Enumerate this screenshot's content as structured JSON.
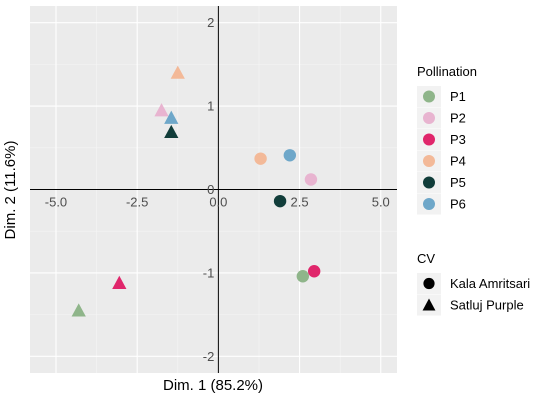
{
  "chart_data": {
    "type": "scatter",
    "xlabel": "Dim. 1 (85.2%)",
    "ylabel": "Dim. 2 (11.6%)",
    "xlim": [
      -5.8,
      5.5
    ],
    "ylim": [
      -2.2,
      2.2
    ],
    "x_ticks": [
      -5.0,
      -2.5,
      0.0,
      2.5,
      5.0
    ],
    "x_tick_labels": [
      "-5.0",
      "-2.5",
      "0.0",
      "2.5",
      "5.0"
    ],
    "y_ticks": [
      -2,
      -1,
      0,
      1,
      2
    ],
    "y_tick_labels": [
      "-2",
      "-1",
      "0",
      "1",
      "2"
    ],
    "grid": true,
    "reference_lines": {
      "x": 0,
      "y": 0
    },
    "legend_placement": "right",
    "legends": {
      "color": {
        "title": "Pollination",
        "items": [
          {
            "label": "P1",
            "color": "#8fb58a"
          },
          {
            "label": "P2",
            "color": "#e8b4d0"
          },
          {
            "label": "P3",
            "color": "#e0266b"
          },
          {
            "label": "P4",
            "color": "#f3b998"
          },
          {
            "label": "P5",
            "color": "#113d3a"
          },
          {
            "label": "P6",
            "color": "#6ea7c9"
          }
        ]
      },
      "shape": {
        "title": "CV",
        "items": [
          {
            "label": "Kala Amritsari",
            "shape": "circle"
          },
          {
            "label": "Satluj Purple",
            "shape": "triangle"
          }
        ]
      }
    },
    "points": [
      {
        "x": -4.3,
        "y": -1.45,
        "pollination": "P1",
        "cv": "Satluj Purple"
      },
      {
        "x": 2.6,
        "y": -1.04,
        "pollination": "P1",
        "cv": "Kala Amritsari"
      },
      {
        "x": -1.75,
        "y": 0.95,
        "pollination": "P2",
        "cv": "Satluj Purple"
      },
      {
        "x": 2.85,
        "y": 0.12,
        "pollination": "P2",
        "cv": "Kala Amritsari"
      },
      {
        "x": -3.05,
        "y": -1.12,
        "pollination": "P3",
        "cv": "Satluj Purple"
      },
      {
        "x": 2.95,
        "y": -0.98,
        "pollination": "P3",
        "cv": "Kala Amritsari"
      },
      {
        "x": -1.25,
        "y": 1.4,
        "pollination": "P4",
        "cv": "Satluj Purple"
      },
      {
        "x": 1.3,
        "y": 0.37,
        "pollination": "P4",
        "cv": "Kala Amritsari"
      },
      {
        "x": -1.45,
        "y": 0.69,
        "pollination": "P5",
        "cv": "Satluj Purple"
      },
      {
        "x": 1.9,
        "y": -0.14,
        "pollination": "P5",
        "cv": "Kala Amritsari"
      },
      {
        "x": -1.45,
        "y": 0.86,
        "pollination": "P6",
        "cv": "Satluj Purple"
      },
      {
        "x": 2.2,
        "y": 0.41,
        "pollination": "P6",
        "cv": "Kala Amritsari"
      }
    ]
  }
}
